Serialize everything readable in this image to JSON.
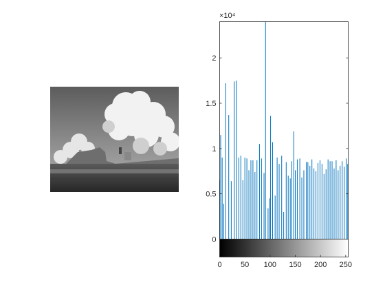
{
  "figure": {
    "image_description": "grayscale photo of clouds above a castle",
    "colors": {
      "bars": "#0072bd",
      "axes": "#262626",
      "background": "#ffffff"
    }
  },
  "chart_data": {
    "type": "bar",
    "xlabel": "",
    "ylabel": "",
    "xlim": [
      0,
      255
    ],
    "ylim": [
      0,
      24000
    ],
    "exponent_label": "×10⁴",
    "x_ticks": [
      0,
      50,
      100,
      150,
      200,
      250
    ],
    "y_ticks": [
      0,
      0.5,
      1,
      1.5,
      2
    ],
    "grid": false,
    "colorbar": "grayscale gradient from black (0) to white (255) below the x-axis",
    "series": [
      {
        "x": [
          0,
          2,
          5,
          8,
          12,
          18,
          23,
          29,
          33,
          38,
          42,
          46,
          50,
          54,
          58,
          62,
          66,
          70,
          74,
          79,
          83,
          88,
          91,
          96,
          99,
          101,
          105,
          110,
          114,
          118,
          123,
          127,
          132,
          136,
          140,
          143,
          147,
          150,
          154,
          159,
          163,
          167,
          172,
          175,
          179,
          183,
          187,
          191,
          195,
          199,
          203,
          207,
          211,
          215,
          219,
          223,
          227,
          231,
          235,
          239,
          243,
          247,
          251,
          254
        ],
        "values": [
          6500,
          11500,
          9000,
          3900,
          17200,
          13700,
          6400,
          17400,
          17500,
          9000,
          9200,
          6500,
          9000,
          8900,
          7600,
          8700,
          8700,
          7400,
          8700,
          10500,
          8900,
          7300,
          24000,
          3400,
          4500,
          13600,
          10700,
          4800,
          9000,
          8300,
          9200,
          3000,
          8500,
          7000,
          6700,
          8600,
          11900,
          7600,
          8800,
          8900,
          6800,
          7600,
          8500,
          8500,
          8100,
          8800,
          7800,
          7500,
          8400,
          8700,
          8300,
          7200,
          7700,
          8800,
          8600,
          8600,
          7800,
          8700,
          7600,
          8100,
          8600,
          8000,
          8900,
          8300
        ]
      }
    ]
  }
}
